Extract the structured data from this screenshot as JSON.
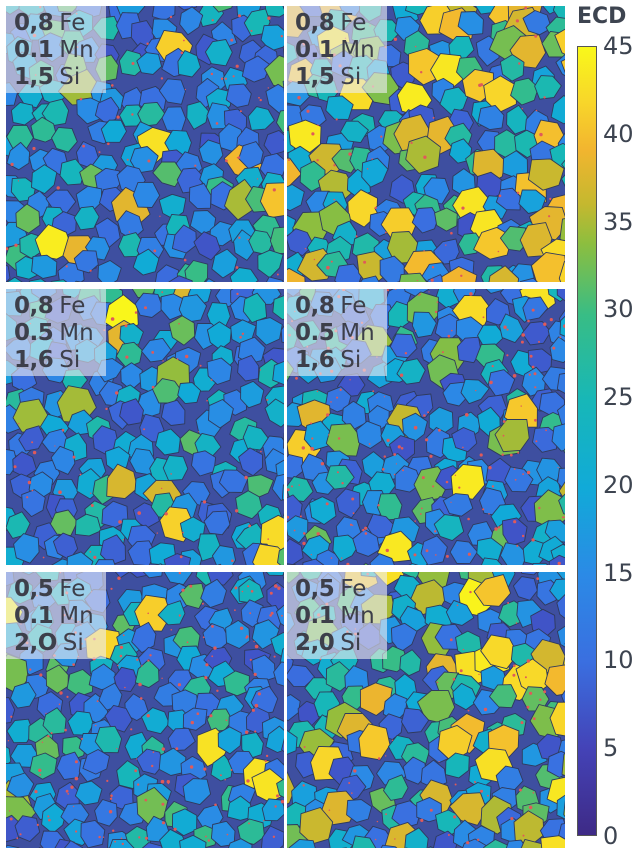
{
  "figure": {
    "panels": [
      {
        "id": "p1",
        "lines": [
          {
            "num": "0,8",
            "el": "Fe"
          },
          {
            "num": "0.1",
            "el": "Mn"
          },
          {
            "num": "1,5",
            "el": "Si"
          }
        ]
      },
      {
        "id": "p2",
        "lines": [
          {
            "num": "0,8",
            "el": "Fe"
          },
          {
            "num": "0.1",
            "el": "Mn"
          },
          {
            "num": "1,5",
            "el": "Si"
          }
        ]
      },
      {
        "id": "p3",
        "lines": [
          {
            "num": "0,8",
            "el": "Fe"
          },
          {
            "num": "0.5",
            "el": "Mn"
          },
          {
            "num": "1,6",
            "el": "Si"
          }
        ]
      },
      {
        "id": "p4",
        "lines": [
          {
            "num": "0,8",
            "el": "Fe"
          },
          {
            "num": "0.5",
            "el": "Mn"
          },
          {
            "num": "1,6",
            "el": "Si"
          }
        ]
      },
      {
        "id": "p5",
        "lines": [
          {
            "num": "0,5",
            "el": "Fe"
          },
          {
            "num": "0.1",
            "el": "Mn"
          },
          {
            "num": "2,O",
            "el": "Si"
          }
        ]
      },
      {
        "id": "p6",
        "lines": [
          {
            "num": "0,5",
            "el": "Fe"
          },
          {
            "num": "0.1",
            "el": "Mn"
          },
          {
            "num": "2,0",
            "el": "Si"
          }
        ]
      }
    ],
    "colorbar": {
      "title": "ECD",
      "ticks": [
        "45",
        "40",
        "35",
        "30",
        "25",
        "20",
        "15",
        "10",
        "5",
        "0"
      ],
      "range": [
        0,
        45
      ]
    },
    "colors": {
      "boundary": "#2f3a5c",
      "precipitate": "#e05a5a"
    }
  }
}
